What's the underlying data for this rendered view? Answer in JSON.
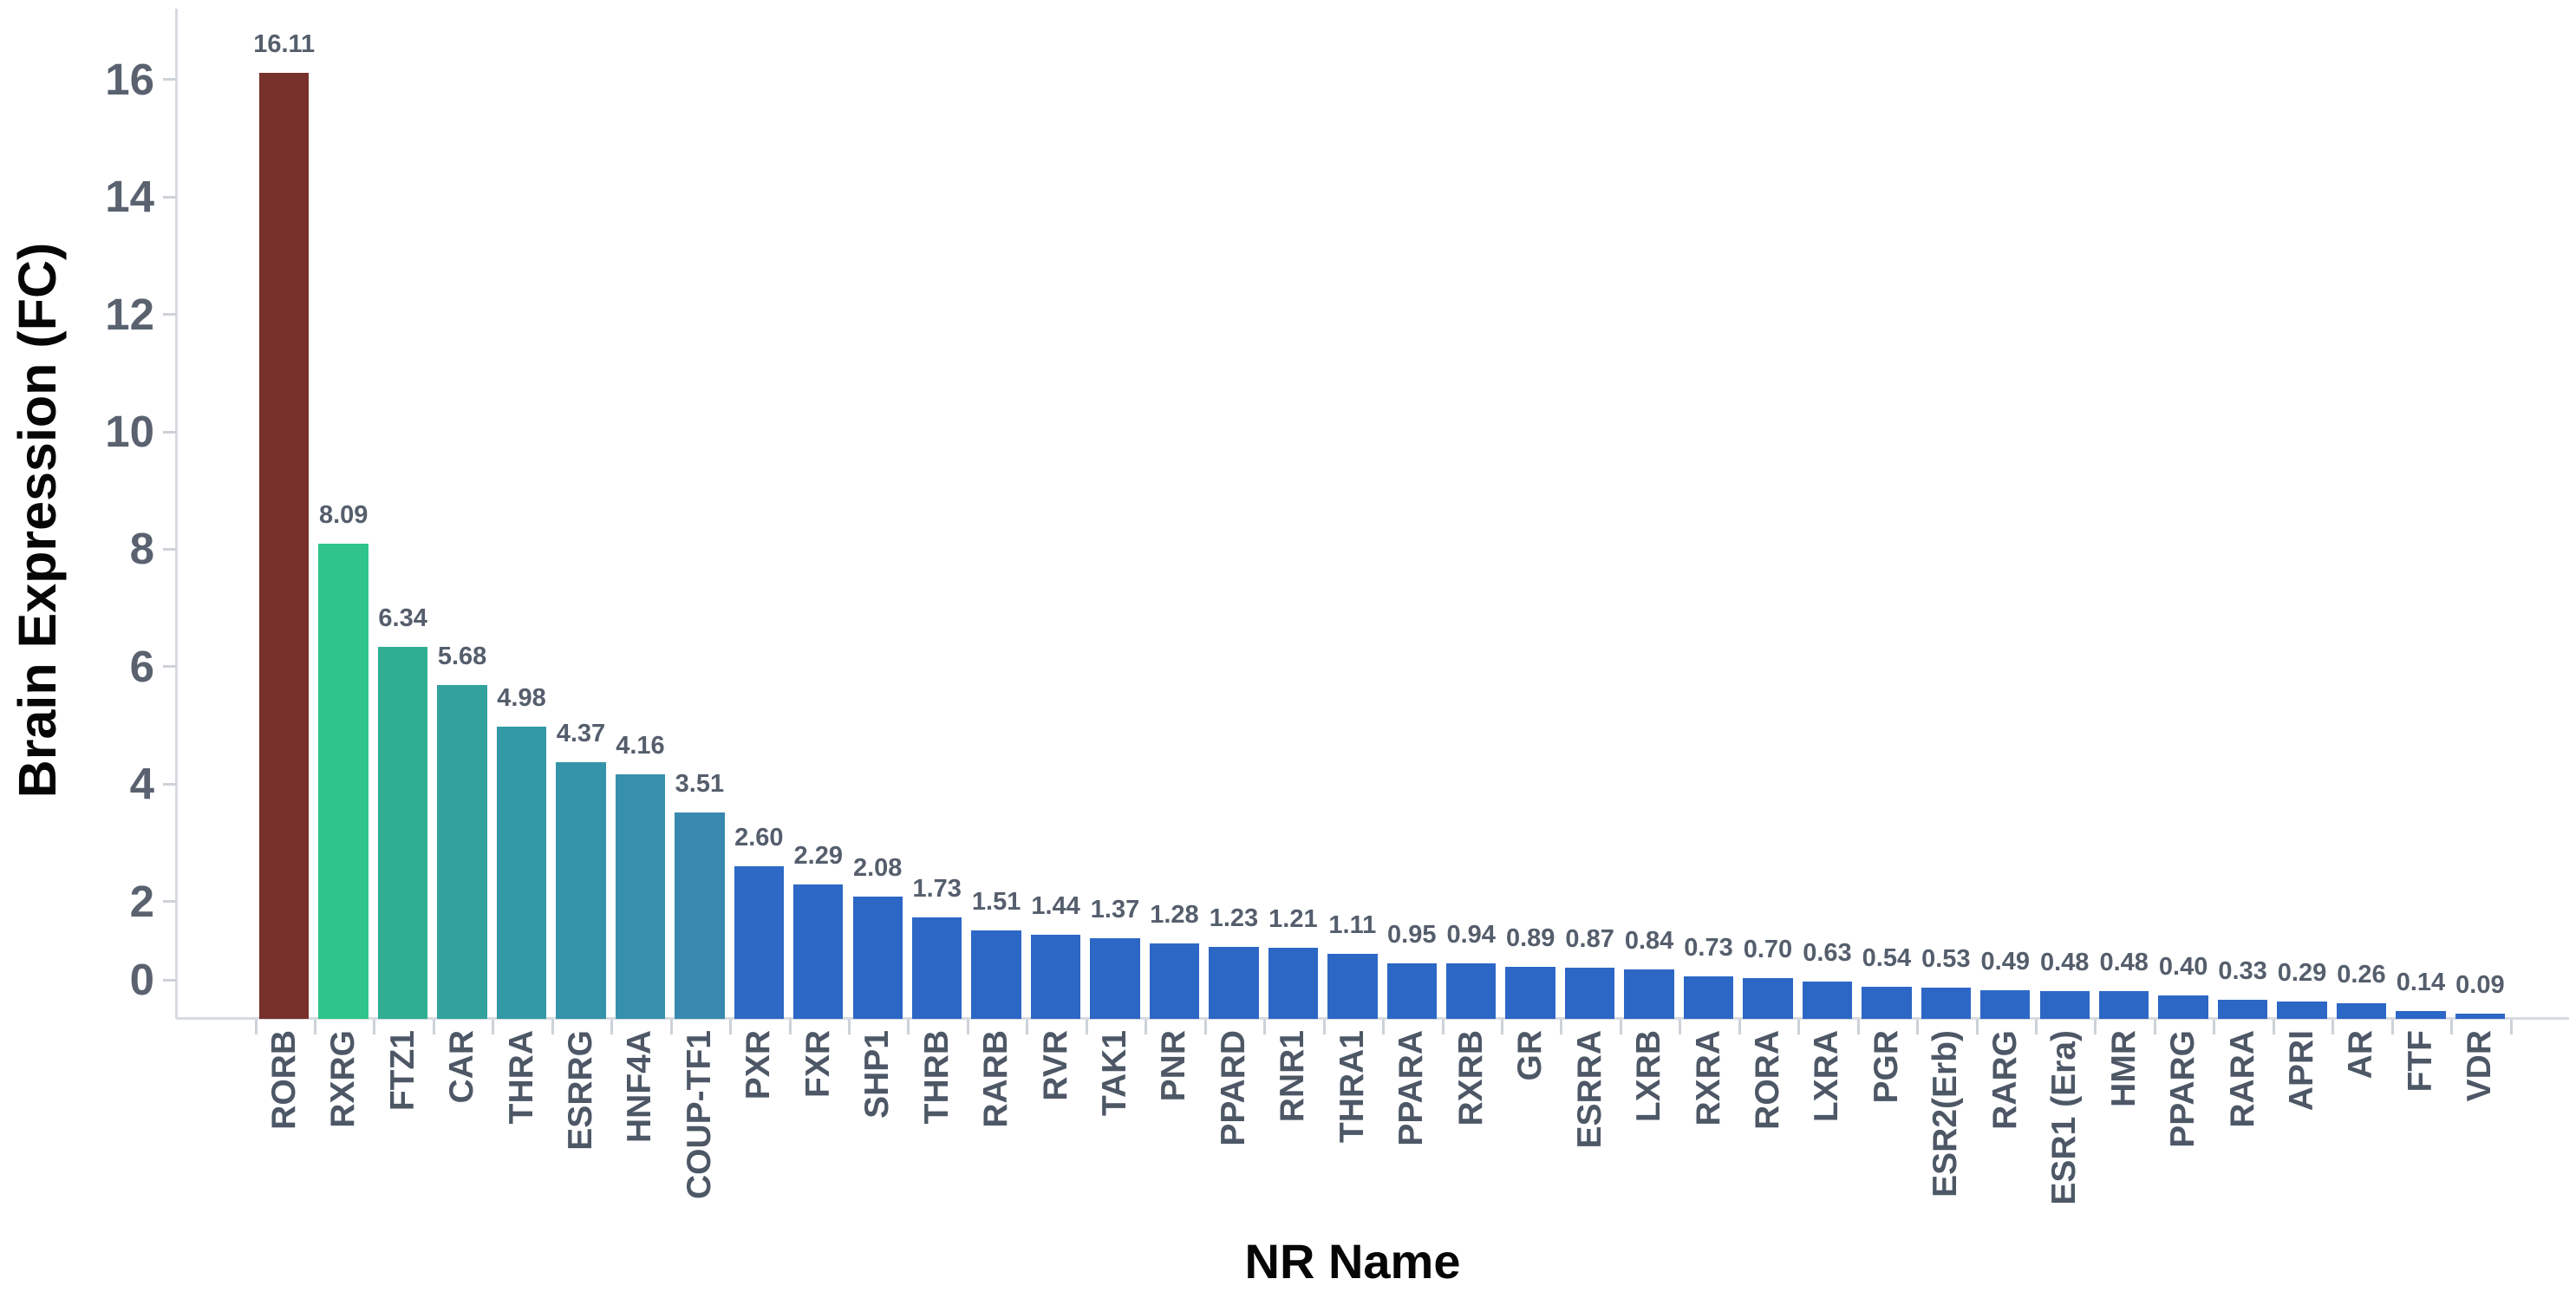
{
  "chart_data": {
    "type": "bar",
    "title": "",
    "xlabel": "NR Name",
    "ylabel": "Brain Expression (FC)",
    "categories": [
      "RORB",
      "RXRG",
      "FTZ1",
      "CAR",
      "THRA",
      "ESRRG",
      "HNF4A",
      "COUP-TF1",
      "PXR",
      "FXR",
      "SHP1",
      "THRB",
      "RARB",
      "RVR",
      "TAK1",
      "PNR",
      "PPARD",
      "RNR1",
      "THRA1",
      "PPARA",
      "RXRB",
      "GR",
      "ESRRA",
      "LXRB",
      "RXRA",
      "RORA",
      "LXRA",
      "PGR",
      "ESR2(Erb)",
      "RARG",
      "ESR1 (Era)",
      "HMR",
      "PPARG",
      "RARA",
      "APRI",
      "AR",
      "FTF",
      "VDR"
    ],
    "values": [
      16.11,
      8.09,
      6.34,
      5.68,
      4.98,
      4.37,
      4.16,
      3.51,
      2.6,
      2.29,
      2.08,
      1.73,
      1.51,
      1.44,
      1.37,
      1.28,
      1.23,
      1.21,
      1.11,
      0.95,
      0.94,
      0.89,
      0.87,
      0.84,
      0.73,
      0.7,
      0.63,
      0.54,
      0.53,
      0.49,
      0.48,
      0.48,
      0.4,
      0.33,
      0.29,
      0.26,
      0.14,
      0.09
    ],
    "value_labels": [
      "16.11",
      "8.09",
      "6.34",
      "5.68",
      "4.98",
      "4.37",
      "4.16",
      "3.51",
      "2.60",
      "2.29",
      "2.08",
      "1.73",
      "1.51",
      "1.44",
      "1.37",
      "1.28",
      "1.23",
      "1.21",
      "1.11",
      "0.95",
      "0.94",
      "0.89",
      "0.87",
      "0.84",
      "0.73",
      "0.70",
      "0.63",
      "0.54",
      "0.53",
      "0.49",
      "0.48",
      "0.48",
      "0.40",
      "0.33",
      "0.29",
      "0.26",
      "0.14",
      "0.09"
    ],
    "bar_colors": [
      "#77312a",
      "#2ec48c",
      "#2fae92",
      "#31a29e",
      "#3399a6",
      "#3594aa",
      "#3690ad",
      "#3789b0",
      "#2d69c5",
      "#2d68c6",
      "#2d67c6",
      "#2d67c6",
      "#2d67c6",
      "#2d67c6",
      "#2d67c6",
      "#2d67c6",
      "#2d67c6",
      "#2d67c6",
      "#2d67c6",
      "#2d67c6",
      "#2d67c6",
      "#2d67c6",
      "#2d67c6",
      "#2d67c6",
      "#2d67c6",
      "#2d67c6",
      "#2d67c6",
      "#2d67c6",
      "#2d67c6",
      "#2d67c6",
      "#2d67c6",
      "#2d67c6",
      "#2d67c6",
      "#2d67c6",
      "#2d67c6",
      "#2d67c6",
      "#2d67c6",
      "#2d67c6"
    ],
    "y_ticks": [
      0,
      2,
      4,
      6,
      8,
      10,
      12,
      14,
      16
    ],
    "ylim": [
      0,
      17.2
    ],
    "grid": "off",
    "legend": "none",
    "value_labels_shown": true
  },
  "colors": {
    "background": "#ffffff",
    "axis_line": "#d7dbe0",
    "tick_mark": "#cdd2d8",
    "y_tick_label": "#5a6270",
    "category_label": "#4d5766",
    "value_label": "#555e6c",
    "axis_title": "#060606",
    "bar_highlight_top": "#77312a",
    "bar_highlight_second": "#2ec48c",
    "bar_default": "#2d67c6"
  }
}
